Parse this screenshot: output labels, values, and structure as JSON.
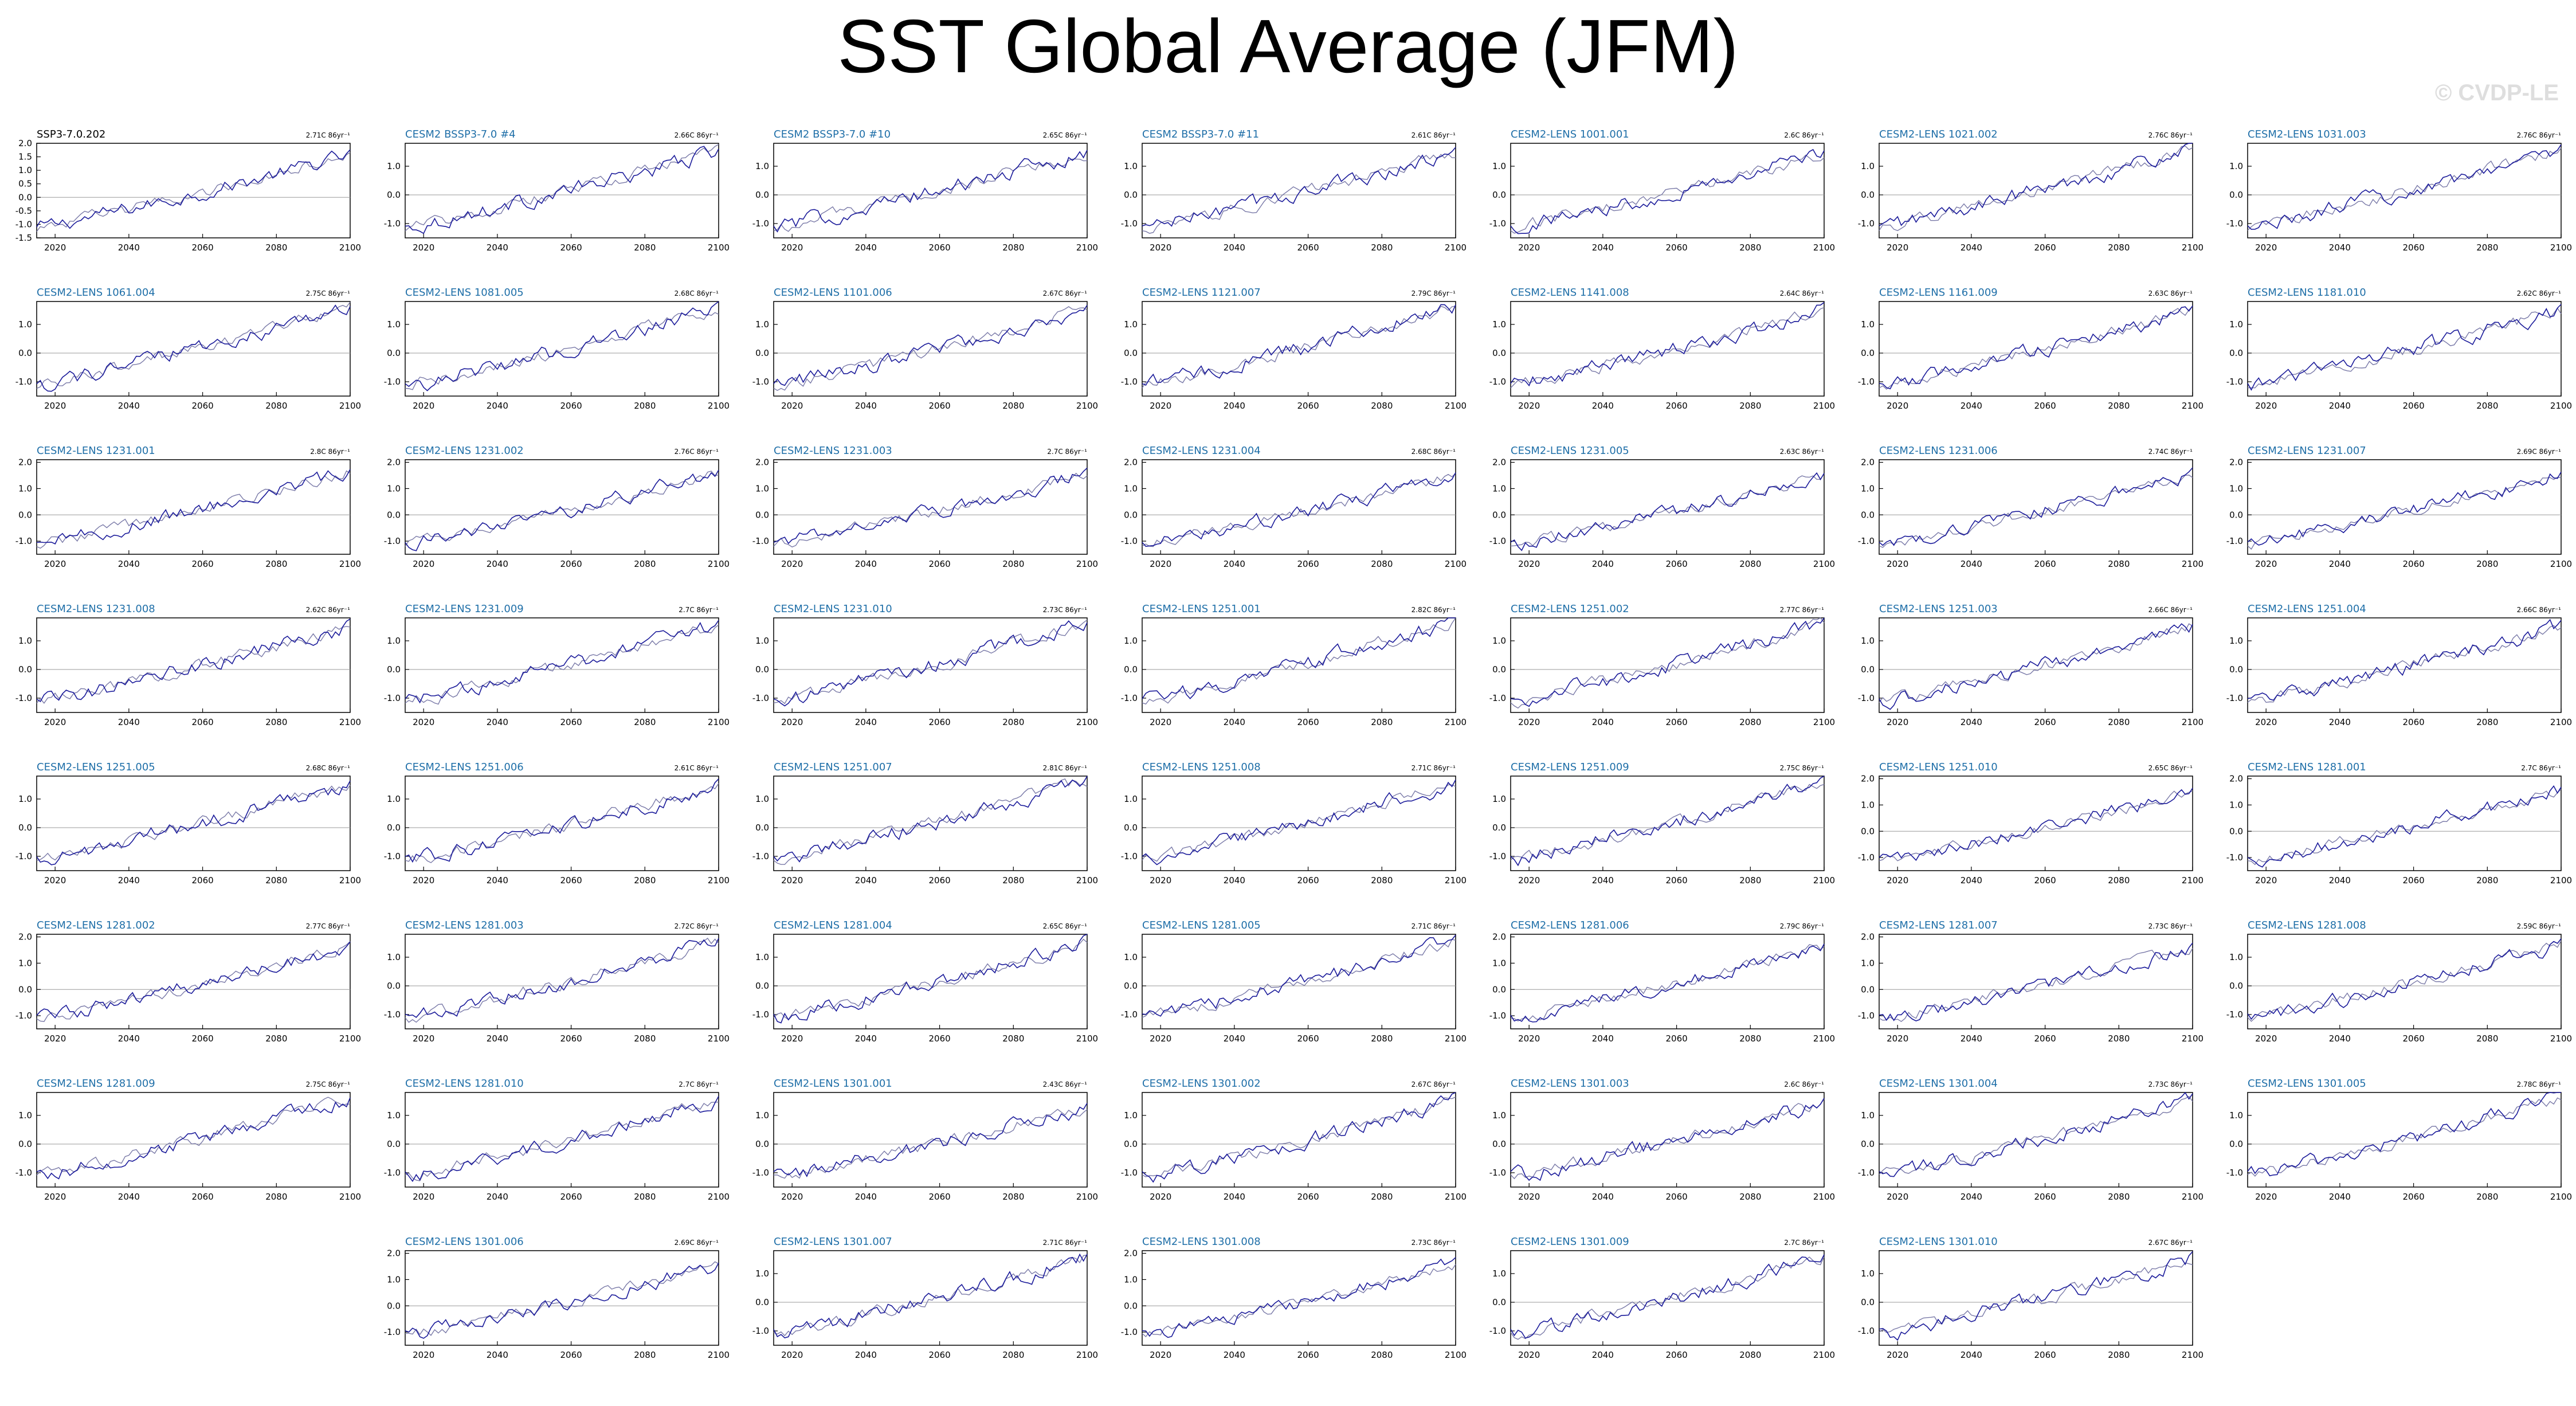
{
  "page": {
    "title": "SST Global Average (JFM)",
    "watermark": "© CVDP-LE"
  },
  "colors": {
    "series_obs": "#1a1a9a",
    "series_model": "#7a7aa8",
    "label_model": "#1f6fa8",
    "label_obs": "#000000",
    "zero_line": "#9a9a9a"
  },
  "chart_data": {
    "type": "line",
    "x_range": [
      2015,
      2100
    ],
    "x_ticks": [
      "2020",
      "2040",
      "2060",
      "2080",
      "2100"
    ],
    "panel_count": 54,
    "trend_units": "C 86yr⁻¹",
    "panels": [
      {
        "label": "SSP3-7.0.202",
        "trend": "2.71C 86yr⁻¹",
        "observed": true,
        "ylim": [
          -1.5,
          2.0
        ],
        "yticks": [
          "2.0",
          "1.5",
          "1.0",
          "0.5",
          "0.0",
          "-0.5",
          "-1.0",
          "-1.5"
        ]
      },
      {
        "label": "CESM2 BSSP3-7.0 #4",
        "trend": "2.66C 86yr⁻¹",
        "ylim": [
          -1.5,
          1.8
        ],
        "yticks": [
          "1.0",
          "0.0",
          "-1.0"
        ]
      },
      {
        "label": "CESM2 BSSP3-7.0 #10",
        "trend": "2.65C 86yr⁻¹",
        "ylim": [
          -1.5,
          1.8
        ],
        "yticks": [
          "1.0",
          "0.0",
          "-1.0"
        ]
      },
      {
        "label": "CESM2 BSSP3-7.0 #11",
        "trend": "2.61C 86yr⁻¹",
        "ylim": [
          -1.5,
          1.8
        ],
        "yticks": [
          "1.0",
          "0.0",
          "-1.0"
        ]
      },
      {
        "label": "CESM2-LENS 1001.001",
        "trend": "2.6C 86yr⁻¹",
        "ylim": [
          -1.5,
          1.8
        ],
        "yticks": [
          "1.0",
          "0.0",
          "-1.0"
        ]
      },
      {
        "label": "CESM2-LENS 1021.002",
        "trend": "2.76C 86yr⁻¹",
        "ylim": [
          -1.5,
          1.8
        ],
        "yticks": [
          "1.0",
          "0.0",
          "-1.0"
        ]
      },
      {
        "label": "CESM2-LENS 1031.003",
        "trend": "2.76C 86yr⁻¹",
        "ylim": [
          -1.5,
          1.8
        ],
        "yticks": [
          "1.0",
          "0.0",
          "-1.0"
        ]
      },
      {
        "label": "CESM2-LENS 1061.004",
        "trend": "2.75C 86yr⁻¹",
        "ylim": [
          -1.5,
          1.8
        ],
        "yticks": [
          "1.0",
          "0.0",
          "-1.0"
        ]
      },
      {
        "label": "CESM2-LENS 1081.005",
        "trend": "2.68C 86yr⁻¹",
        "ylim": [
          -1.5,
          1.8
        ],
        "yticks": [
          "1.0",
          "0.0",
          "-1.0"
        ]
      },
      {
        "label": "CESM2-LENS 1101.006",
        "trend": "2.67C 86yr⁻¹",
        "ylim": [
          -1.5,
          1.8
        ],
        "yticks": [
          "1.0",
          "0.0",
          "-1.0"
        ]
      },
      {
        "label": "CESM2-LENS 1121.007",
        "trend": "2.79C 86yr⁻¹",
        "ylim": [
          -1.5,
          1.8
        ],
        "yticks": [
          "1.0",
          "0.0",
          "-1.0"
        ]
      },
      {
        "label": "CESM2-LENS 1141.008",
        "trend": "2.64C 86yr⁻¹",
        "ylim": [
          -1.5,
          1.8
        ],
        "yticks": [
          "1.0",
          "0.0",
          "-1.0"
        ]
      },
      {
        "label": "CESM2-LENS 1161.009",
        "trend": "2.63C 86yr⁻¹",
        "ylim": [
          -1.5,
          1.8
        ],
        "yticks": [
          "1.0",
          "0.0",
          "-1.0"
        ]
      },
      {
        "label": "CESM2-LENS 1181.010",
        "trend": "2.62C 86yr⁻¹",
        "ylim": [
          -1.5,
          1.8
        ],
        "yticks": [
          "1.0",
          "0.0",
          "-1.0"
        ]
      },
      {
        "label": "CESM2-LENS 1231.001",
        "trend": "2.8C 86yr⁻¹",
        "ylim": [
          -1.5,
          2.1
        ],
        "yticks": [
          "2.0",
          "1.0",
          "0.0",
          "-1.0"
        ]
      },
      {
        "label": "CESM2-LENS 1231.002",
        "trend": "2.76C 86yr⁻¹",
        "ylim": [
          -1.5,
          2.1
        ],
        "yticks": [
          "2.0",
          "1.0",
          "0.0",
          "-1.0"
        ]
      },
      {
        "label": "CESM2-LENS 1231.003",
        "trend": "2.7C 86yr⁻¹",
        "ylim": [
          -1.5,
          2.1
        ],
        "yticks": [
          "2.0",
          "1.0",
          "0.0",
          "-1.0"
        ]
      },
      {
        "label": "CESM2-LENS 1231.004",
        "trend": "2.68C 86yr⁻¹",
        "ylim": [
          -1.5,
          2.1
        ],
        "yticks": [
          "2.0",
          "1.0",
          "0.0",
          "-1.0"
        ]
      },
      {
        "label": "CESM2-LENS 1231.005",
        "trend": "2.63C 86yr⁻¹",
        "ylim": [
          -1.5,
          2.1
        ],
        "yticks": [
          "2.0",
          "1.0",
          "0.0",
          "-1.0"
        ]
      },
      {
        "label": "CESM2-LENS 1231.006",
        "trend": "2.74C 86yr⁻¹",
        "ylim": [
          -1.5,
          2.1
        ],
        "yticks": [
          "2.0",
          "1.0",
          "0.0",
          "-1.0"
        ]
      },
      {
        "label": "CESM2-LENS 1231.007",
        "trend": "2.69C 86yr⁻¹",
        "ylim": [
          -1.5,
          2.1
        ],
        "yticks": [
          "2.0",
          "1.0",
          "0.0",
          "-1.0"
        ]
      },
      {
        "label": "CESM2-LENS 1231.008",
        "trend": "2.62C 86yr⁻¹",
        "ylim": [
          -1.5,
          1.8
        ],
        "yticks": [
          "1.0",
          "0.0",
          "-1.0"
        ]
      },
      {
        "label": "CESM2-LENS 1231.009",
        "trend": "2.7C 86yr⁻¹",
        "ylim": [
          -1.5,
          1.8
        ],
        "yticks": [
          "1.0",
          "0.0",
          "-1.0"
        ]
      },
      {
        "label": "CESM2-LENS 1231.010",
        "trend": "2.73C 86yr⁻¹",
        "ylim": [
          -1.5,
          1.8
        ],
        "yticks": [
          "1.0",
          "0.0",
          "-1.0"
        ]
      },
      {
        "label": "CESM2-LENS 1251.001",
        "trend": "2.82C 86yr⁻¹",
        "ylim": [
          -1.5,
          1.8
        ],
        "yticks": [
          "1.0",
          "0.0",
          "-1.0"
        ]
      },
      {
        "label": "CESM2-LENS 1251.002",
        "trend": "2.77C 86yr⁻¹",
        "ylim": [
          -1.5,
          1.8
        ],
        "yticks": [
          "1.0",
          "0.0",
          "-1.0"
        ]
      },
      {
        "label": "CESM2-LENS 1251.003",
        "trend": "2.66C 86yr⁻¹",
        "ylim": [
          -1.5,
          1.8
        ],
        "yticks": [
          "1.0",
          "0.0",
          "-1.0"
        ]
      },
      {
        "label": "CESM2-LENS 1251.004",
        "trend": "2.66C 86yr⁻¹",
        "ylim": [
          -1.5,
          1.8
        ],
        "yticks": [
          "1.0",
          "0.0",
          "-1.0"
        ]
      },
      {
        "label": "CESM2-LENS 1251.005",
        "trend": "2.68C 86yr⁻¹",
        "ylim": [
          -1.5,
          1.8
        ],
        "yticks": [
          "1.0",
          "0.0",
          "-1.0"
        ]
      },
      {
        "label": "CESM2-LENS 1251.006",
        "trend": "2.61C 86yr⁻¹",
        "ylim": [
          -1.5,
          1.8
        ],
        "yticks": [
          "1.0",
          "0.0",
          "-1.0"
        ]
      },
      {
        "label": "CESM2-LENS 1251.007",
        "trend": "2.81C 86yr⁻¹",
        "ylim": [
          -1.5,
          1.8
        ],
        "yticks": [
          "1.0",
          "0.0",
          "-1.0"
        ]
      },
      {
        "label": "CESM2-LENS 1251.008",
        "trend": "2.71C 86yr⁻¹",
        "ylim": [
          -1.5,
          1.8
        ],
        "yticks": [
          "1.0",
          "0.0",
          "-1.0"
        ]
      },
      {
        "label": "CESM2-LENS 1251.009",
        "trend": "2.75C 86yr⁻¹",
        "ylim": [
          -1.5,
          1.8
        ],
        "yticks": [
          "1.0",
          "0.0",
          "-1.0"
        ]
      },
      {
        "label": "CESM2-LENS 1251.010",
        "trend": "2.65C 86yr⁻¹",
        "ylim": [
          -1.5,
          2.1
        ],
        "yticks": [
          "2.0",
          "1.0",
          "0.0",
          "-1.0"
        ]
      },
      {
        "label": "CESM2-LENS 1281.001",
        "trend": "2.7C 86yr⁻¹",
        "ylim": [
          -1.5,
          2.1
        ],
        "yticks": [
          "2.0",
          "1.0",
          "0.0",
          "-1.0"
        ]
      },
      {
        "label": "CESM2-LENS 1281.002",
        "trend": "2.77C 86yr⁻¹",
        "ylim": [
          -1.5,
          2.1
        ],
        "yticks": [
          "2.0",
          "1.0",
          "0.0",
          "-1.0"
        ]
      },
      {
        "label": "CESM2-LENS 1281.003",
        "trend": "2.72C 86yr⁻¹",
        "ylim": [
          -1.5,
          1.8
        ],
        "yticks": [
          "1.0",
          "0.0",
          "-1.0"
        ]
      },
      {
        "label": "CESM2-LENS 1281.004",
        "trend": "2.65C 86yr⁻¹",
        "ylim": [
          -1.5,
          1.8
        ],
        "yticks": [
          "1.0",
          "0.0",
          "-1.0"
        ]
      },
      {
        "label": "CESM2-LENS 1281.005",
        "trend": "2.71C 86yr⁻¹",
        "ylim": [
          -1.5,
          1.8
        ],
        "yticks": [
          "1.0",
          "0.0",
          "-1.0"
        ]
      },
      {
        "label": "CESM2-LENS 1281.006",
        "trend": "2.79C 86yr⁻¹",
        "ylim": [
          -1.5,
          2.1
        ],
        "yticks": [
          "2.0",
          "1.0",
          "0.0",
          "-1.0"
        ]
      },
      {
        "label": "CESM2-LENS 1281.007",
        "trend": "2.73C 86yr⁻¹",
        "ylim": [
          -1.5,
          2.1
        ],
        "yticks": [
          "2.0",
          "1.0",
          "0.0",
          "-1.0"
        ]
      },
      {
        "label": "CESM2-LENS 1281.008",
        "trend": "2.59C 86yr⁻¹",
        "ylim": [
          -1.5,
          1.8
        ],
        "yticks": [
          "1.0",
          "0.0",
          "-1.0"
        ]
      },
      {
        "label": "CESM2-LENS 1281.009",
        "trend": "2.75C 86yr⁻¹",
        "ylim": [
          -1.5,
          1.8
        ],
        "yticks": [
          "1.0",
          "0.0",
          "-1.0"
        ]
      },
      {
        "label": "CESM2-LENS 1281.010",
        "trend": "2.7C 86yr⁻¹",
        "ylim": [
          -1.5,
          1.8
        ],
        "yticks": [
          "1.0",
          "0.0",
          "-1.0"
        ]
      },
      {
        "label": "CESM2-LENS 1301.001",
        "trend": "2.43C 86yr⁻¹",
        "ylim": [
          -1.5,
          1.8
        ],
        "yticks": [
          "1.0",
          "0.0",
          "-1.0"
        ]
      },
      {
        "label": "CESM2-LENS 1301.002",
        "trend": "2.67C 86yr⁻¹",
        "ylim": [
          -1.5,
          1.8
        ],
        "yticks": [
          "1.0",
          "0.0",
          "-1.0"
        ]
      },
      {
        "label": "CESM2-LENS 1301.003",
        "trend": "2.6C 86yr⁻¹",
        "ylim": [
          -1.5,
          1.8
        ],
        "yticks": [
          "1.0",
          "0.0",
          "-1.0"
        ]
      },
      {
        "label": "CESM2-LENS 1301.004",
        "trend": "2.73C 86yr⁻¹",
        "ylim": [
          -1.5,
          1.8
        ],
        "yticks": [
          "1.0",
          "0.0",
          "-1.0"
        ]
      },
      {
        "label": "CESM2-LENS 1301.005",
        "trend": "2.78C 86yr⁻¹",
        "ylim": [
          -1.5,
          1.8
        ],
        "yticks": [
          "1.0",
          "0.0",
          "-1.0"
        ]
      },
      {
        "label": "CESM2-LENS 1301.006",
        "trend": "2.69C 86yr⁻¹",
        "ylim": [
          -1.5,
          2.1
        ],
        "yticks": [
          "2.0",
          "1.0",
          "0.0",
          "-1.0"
        ]
      },
      {
        "label": "CESM2-LENS 1301.007",
        "trend": "2.71C 86yr⁻¹",
        "ylim": [
          -1.5,
          1.8
        ],
        "yticks": [
          "1.0",
          "0.0",
          "-1.0"
        ]
      },
      {
        "label": "CESM2-LENS 1301.008",
        "trend": "2.73C 86yr⁻¹",
        "ylim": [
          -1.5,
          2.1
        ],
        "yticks": [
          "2.0",
          "1.0",
          "0.0",
          "-1.0"
        ]
      },
      {
        "label": "CESM2-LENS 1301.009",
        "trend": "2.7C 86yr⁻¹",
        "ylim": [
          -1.5,
          1.8
        ],
        "yticks": [
          "1.0",
          "0.0",
          "-1.0"
        ]
      },
      {
        "label": "CESM2-LENS 1301.010",
        "trend": "2.67C 86yr⁻¹",
        "ylim": [
          -1.5,
          1.8
        ],
        "yticks": [
          "1.0",
          "0.0",
          "-1.0"
        ]
      }
    ]
  }
}
